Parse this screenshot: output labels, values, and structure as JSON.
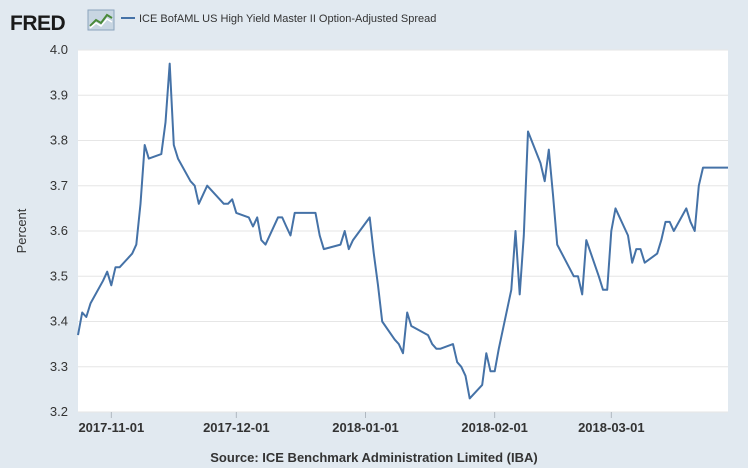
{
  "brand": {
    "name": "FRED",
    "logo_icon": "fred-chart-logo-icon"
  },
  "legend": {
    "label": "ICE BofAML US High Yield Master II Option-Adjusted Spread"
  },
  "source": {
    "text": "Source: ICE Benchmark Administration Limited (IBA)"
  },
  "colors": {
    "background": "#e1e9f0",
    "plot_bg": "#ffffff",
    "line": "#4572a7",
    "grid": "#e6e6e6"
  },
  "chart_data": {
    "type": "line",
    "title": "",
    "xlabel": "",
    "ylabel": "Percent",
    "ylim": [
      3.2,
      4.0
    ],
    "xlim": [
      "2017-10-24",
      "2018-03-29"
    ],
    "y_ticks": [
      "3.2",
      "3.3",
      "3.4",
      "3.5",
      "3.6",
      "3.7",
      "3.8",
      "3.9",
      "4.0"
    ],
    "x_ticks": [
      "2017-11-01",
      "2017-12-01",
      "2018-01-01",
      "2018-02-01",
      "2018-03-01"
    ],
    "grid": "horizontal",
    "legend_placement": "top-left",
    "series": [
      {
        "name": "ICE BofAML US High Yield Master II Option-Adjusted Spread",
        "x": [
          "2017-10-24",
          "2017-10-25",
          "2017-10-26",
          "2017-10-27",
          "2017-10-30",
          "2017-10-31",
          "2017-11-01",
          "2017-11-02",
          "2017-11-03",
          "2017-11-06",
          "2017-11-07",
          "2017-11-08",
          "2017-11-09",
          "2017-11-10",
          "2017-11-13",
          "2017-11-14",
          "2017-11-15",
          "2017-11-16",
          "2017-11-17",
          "2017-11-20",
          "2017-11-21",
          "2017-11-22",
          "2017-11-24",
          "2017-11-27",
          "2017-11-28",
          "2017-11-29",
          "2017-11-30",
          "2017-12-01",
          "2017-12-04",
          "2017-12-05",
          "2017-12-06",
          "2017-12-07",
          "2017-12-08",
          "2017-12-11",
          "2017-12-12",
          "2017-12-13",
          "2017-12-14",
          "2017-12-15",
          "2017-12-18",
          "2017-12-19",
          "2017-12-20",
          "2017-12-21",
          "2017-12-22",
          "2017-12-26",
          "2017-12-27",
          "2017-12-28",
          "2017-12-29",
          "2018-01-02",
          "2018-01-03",
          "2018-01-04",
          "2018-01-05",
          "2018-01-08",
          "2018-01-09",
          "2018-01-10",
          "2018-01-11",
          "2018-01-12",
          "2018-01-16",
          "2018-01-17",
          "2018-01-18",
          "2018-01-19",
          "2018-01-22",
          "2018-01-23",
          "2018-01-24",
          "2018-01-25",
          "2018-01-26",
          "2018-01-29",
          "2018-01-30",
          "2018-01-31",
          "2018-02-01",
          "2018-02-02",
          "2018-02-05",
          "2018-02-06",
          "2018-02-07",
          "2018-02-08",
          "2018-02-09",
          "2018-02-12",
          "2018-02-13",
          "2018-02-14",
          "2018-02-15",
          "2018-02-16",
          "2018-02-20",
          "2018-02-21",
          "2018-02-22",
          "2018-02-23",
          "2018-02-26",
          "2018-02-27",
          "2018-02-28",
          "2018-03-01",
          "2018-03-02",
          "2018-03-05",
          "2018-03-06",
          "2018-03-07",
          "2018-03-08",
          "2018-03-09",
          "2018-03-12",
          "2018-03-13",
          "2018-03-14",
          "2018-03-15",
          "2018-03-16",
          "2018-03-19",
          "2018-03-20",
          "2018-03-21",
          "2018-03-22",
          "2018-03-23",
          "2018-03-26",
          "2018-03-27",
          "2018-03-28",
          "2018-03-29"
        ],
        "values": [
          3.37,
          3.42,
          3.41,
          3.44,
          3.49,
          3.51,
          3.48,
          3.52,
          3.52,
          3.55,
          3.57,
          3.66,
          3.79,
          3.76,
          3.77,
          3.84,
          3.97,
          3.79,
          3.76,
          3.71,
          3.7,
          3.66,
          3.7,
          3.67,
          3.66,
          3.66,
          3.67,
          3.64,
          3.63,
          3.61,
          3.63,
          3.58,
          3.57,
          3.63,
          3.63,
          3.61,
          3.59,
          3.64,
          3.64,
          3.64,
          3.64,
          3.59,
          3.56,
          3.57,
          3.6,
          3.56,
          3.58,
          3.63,
          3.55,
          3.48,
          3.4,
          3.36,
          3.35,
          3.33,
          3.42,
          3.39,
          3.37,
          3.35,
          3.34,
          3.34,
          3.35,
          3.31,
          3.3,
          3.28,
          3.23,
          3.26,
          3.33,
          3.29,
          3.29,
          3.34,
          3.47,
          3.6,
          3.46,
          3.59,
          3.82,
          3.75,
          3.71,
          3.78,
          3.68,
          3.57,
          3.5,
          3.5,
          3.46,
          3.58,
          3.5,
          3.47,
          3.47,
          3.6,
          3.65,
          3.59,
          3.53,
          3.56,
          3.56,
          3.53,
          3.55,
          3.58,
          3.62,
          3.62,
          3.6,
          3.65,
          3.62,
          3.6,
          3.7,
          3.74,
          3.74,
          3.74,
          3.74,
          3.74
        ]
      }
    ]
  }
}
